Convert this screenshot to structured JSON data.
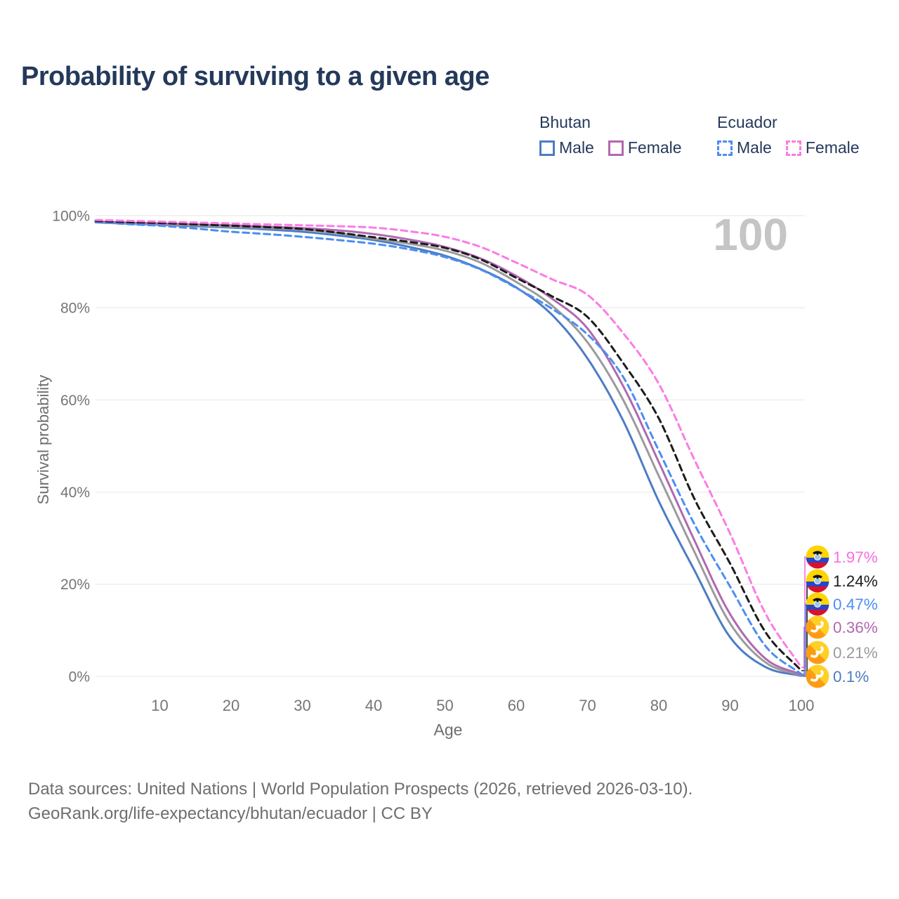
{
  "title": "Probability of surviving to a given age",
  "watermark": "100",
  "legend": {
    "groups": [
      {
        "name": "Bhutan",
        "underline_style": "solid",
        "underline_color": "#a8a8a8",
        "items": [
          {
            "label": "Male",
            "color": "#4d7cc4",
            "dash": false
          },
          {
            "label": "Female",
            "color": "#b069b0",
            "dash": false
          }
        ]
      },
      {
        "name": "Ecuador",
        "underline_style": "dashed",
        "underline_color": "#1c1c1c",
        "items": [
          {
            "label": "Male",
            "color": "#4b8ef2",
            "dash": true
          },
          {
            "label": "Female",
            "color": "#fb7ce4",
            "dash": true
          }
        ]
      }
    ]
  },
  "chart_data": {
    "type": "line",
    "title": "Probability of surviving to a given age",
    "xlabel": "Age",
    "ylabel": "Survival probability",
    "xlim": [
      0,
      100
    ],
    "ylim": [
      0,
      100
    ],
    "grid": "horizontal",
    "grid_color": "#ececeb",
    "tick_color": "#757575",
    "legend_position": "top-right",
    "x_ticks": [
      10,
      20,
      30,
      40,
      50,
      60,
      70,
      80,
      90,
      100
    ],
    "y_tick_values": [
      100,
      80,
      60,
      40,
      20,
      0
    ],
    "y_tick_labels": [
      "100%",
      "80%",
      "60%",
      "40%",
      "20%",
      "0%"
    ],
    "ages": [
      0,
      5,
      10,
      15,
      20,
      25,
      30,
      35,
      40,
      45,
      50,
      55,
      60,
      65,
      70,
      75,
      80,
      85,
      90,
      95,
      100
    ],
    "series": [
      {
        "name": "Bhutan Male",
        "country": "Bhutan",
        "sex": "Male",
        "color": "#4d7cc4",
        "style": "solid",
        "end_value_label": "0.1%",
        "values": [
          98.6,
          98.3,
          98.0,
          97.7,
          97.4,
          97.0,
          96.5,
          95.7,
          94.7,
          93.2,
          91.3,
          88.4,
          84.4,
          78.5,
          69.0,
          55.5,
          38.0,
          23.0,
          8.5,
          2.0,
          0.1
        ]
      },
      {
        "name": "Bhutan",
        "country": "Bhutan",
        "sex": "All",
        "color": "#9b9b9b",
        "style": "solid",
        "end_value_label": "0.21%",
        "values": [
          98.7,
          98.4,
          98.1,
          97.9,
          97.6,
          97.3,
          97.0,
          96.2,
          95.0,
          93.9,
          92.4,
          89.8,
          85.6,
          80.5,
          72.5,
          60.0,
          43.5,
          27.0,
          11.5,
          3.0,
          0.21
        ]
      },
      {
        "name": "Bhutan Female",
        "country": "Bhutan",
        "sex": "Female",
        "color": "#b069b0",
        "style": "solid",
        "end_value_label": "0.36%",
        "values": [
          98.8,
          98.5,
          98.3,
          98.1,
          97.9,
          97.6,
          97.3,
          96.8,
          96.0,
          94.8,
          93.2,
          90.7,
          86.9,
          82.0,
          75.5,
          63.0,
          46.5,
          29.5,
          13.5,
          3.8,
          0.36
        ]
      },
      {
        "name": "Ecuador Male",
        "country": "Ecuador",
        "sex": "Male",
        "color": "#4b8ef2",
        "style": "dashed",
        "end_value_label": "0.47%",
        "values": [
          98.8,
          98.2,
          97.8,
          97.2,
          96.5,
          96.0,
          95.4,
          94.7,
          93.9,
          92.7,
          91.0,
          88.3,
          84.3,
          79.8,
          74.2,
          65.0,
          49.0,
          33.0,
          19.5,
          6.5,
          0.47
        ]
      },
      {
        "name": "Ecuador",
        "country": "Ecuador",
        "sex": "All",
        "color": "#1c1c1c",
        "style": "dashed",
        "end_value_label": "1.24%",
        "values": [
          98.9,
          98.6,
          98.4,
          98.1,
          97.8,
          97.5,
          97.1,
          96.3,
          95.3,
          94.3,
          93.0,
          90.5,
          86.5,
          82.5,
          78.0,
          68.0,
          56.0,
          38.5,
          24.5,
          9.5,
          1.24
        ]
      },
      {
        "name": "Ecuador Female",
        "country": "Ecuador",
        "sex": "Female",
        "color": "#fb7ce4",
        "style": "dashed",
        "end_value_label": "1.97%",
        "values": [
          99.1,
          98.9,
          98.7,
          98.5,
          98.3,
          98.1,
          97.9,
          97.7,
          97.4,
          96.6,
          95.4,
          93.2,
          89.8,
          86.2,
          82.8,
          74.5,
          63.5,
          47.0,
          31.0,
          13.5,
          1.97
        ]
      }
    ],
    "end_labels": [
      {
        "text": "1.97%",
        "color": "#f76ee0",
        "flag": "ecuador",
        "series": "Ecuador Female",
        "value": 1.97
      },
      {
        "text": "1.24%",
        "color": "#1c1c1c",
        "flag": "ecuador",
        "series": "Ecuador",
        "value": 1.24
      },
      {
        "text": "0.47%",
        "color": "#4b8ef2",
        "flag": "ecuador",
        "series": "Ecuador Male",
        "value": 0.47
      },
      {
        "text": "0.36%",
        "color": "#b069b0",
        "flag": "bhutan",
        "series": "Bhutan Female",
        "value": 0.36
      },
      {
        "text": "0.21%",
        "color": "#9b9b9b",
        "flag": "bhutan",
        "series": "Bhutan",
        "value": 0.21
      },
      {
        "text": "0.1%",
        "color": "#4d7cc4",
        "flag": "bhutan",
        "series": "Bhutan Male",
        "value": 0.1
      }
    ]
  },
  "footer": {
    "line1": "Data sources: United Nations | World Population Prospects (2026, retrieved 2026-03-10).",
    "line2": "GeoRank.org/life-expectancy/bhutan/ecuador | CC BY"
  }
}
